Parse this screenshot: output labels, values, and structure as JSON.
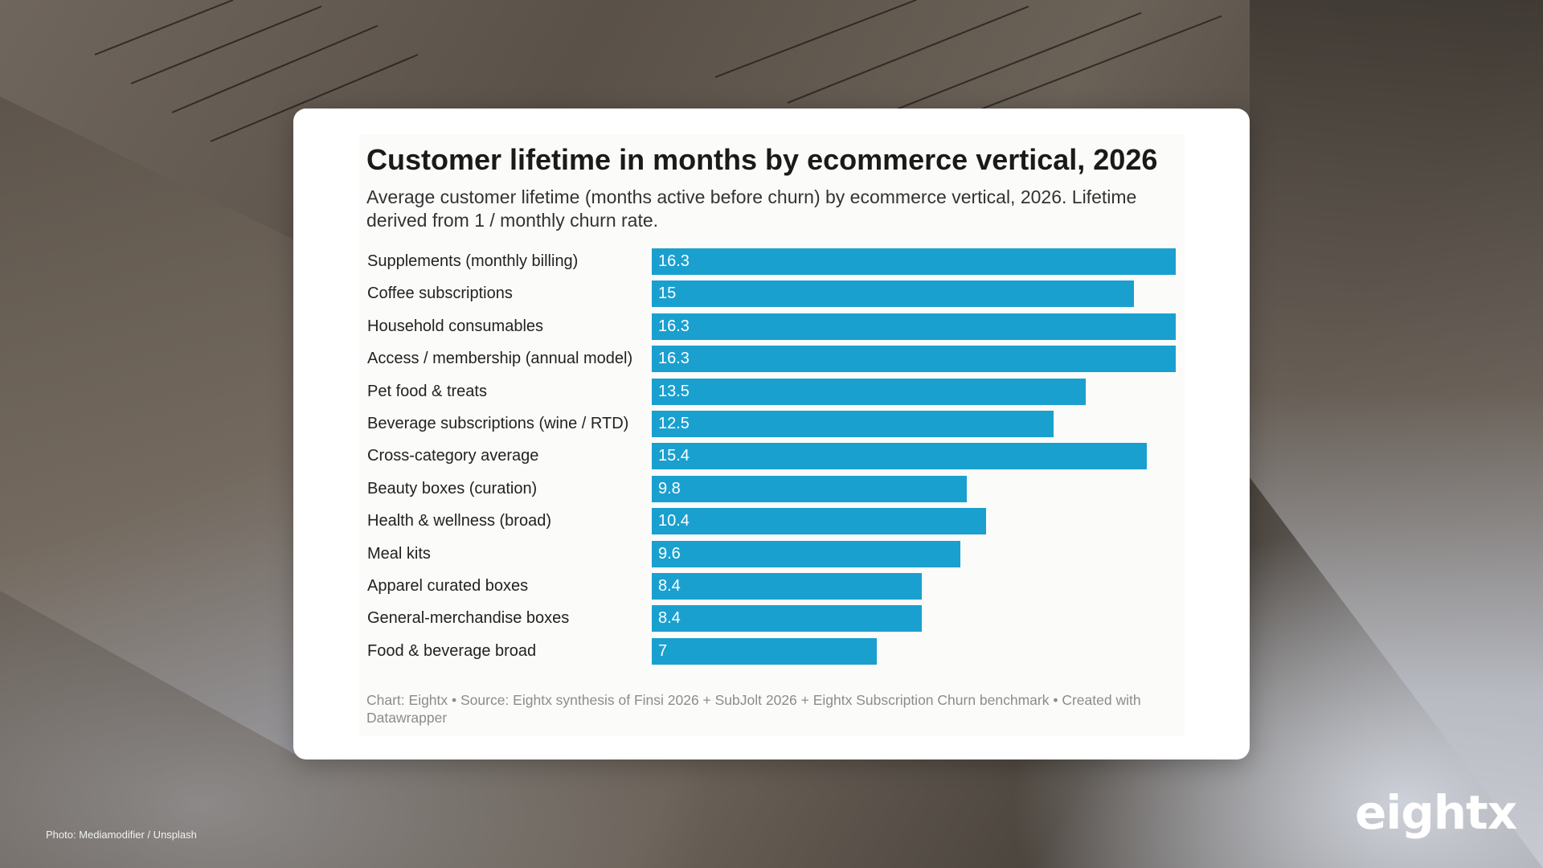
{
  "chart_data": {
    "type": "bar",
    "orientation": "horizontal",
    "title": "Customer lifetime in months by ecommerce vertical, 2026",
    "subtitle": "Average customer lifetime (months active before churn) by ecommerce vertical, 2026. Lifetime derived from 1 / monthly churn rate.",
    "categories": [
      "Supplements (monthly billing)",
      "Coffee subscriptions",
      "Household consumables",
      "Access / membership (annual model)",
      "Pet food & treats",
      "Beverage subscriptions (wine / RTD)",
      "Cross-category average",
      "Beauty boxes (curation)",
      "Health & wellness (broad)",
      "Meal kits",
      "Apparel curated boxes",
      "General-merchandise boxes",
      "Food & beverage broad"
    ],
    "values": [
      16.3,
      15,
      16.3,
      16.3,
      13.5,
      12.5,
      15.4,
      9.8,
      10.4,
      9.6,
      8.4,
      8.4,
      7
    ],
    "value_labels": [
      "16.3",
      "15",
      "16.3",
      "16.3",
      "13.5",
      "12.5",
      "15.4",
      "9.8",
      "10.4",
      "9.6",
      "8.4",
      "8.4",
      "7"
    ],
    "xlim": [
      0,
      16.3
    ],
    "bar_color": "#1aa0cf",
    "grid": false,
    "legend": "none",
    "footnote": "Chart: Eightx • Source: Eightx synthesis of Finsi 2026 + SubJolt 2026 + Eightx Subscription Churn benchmark • Created with Datawrapper"
  },
  "page": {
    "photo_credit": "Photo: Mediamodifier / Unsplash",
    "logo_text": "eightx"
  }
}
